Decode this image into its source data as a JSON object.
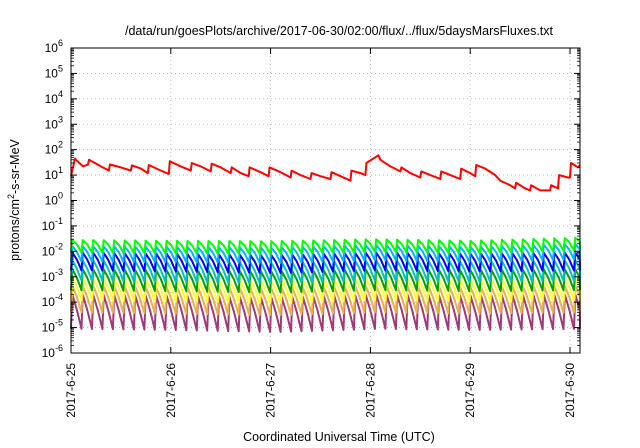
{
  "chart_data": {
    "type": "line",
    "title": "/data/run/goesPlots/archive/2017-06-30/02:00/flux/../flux/5daysMarsFluxes.txt",
    "xlabel": "Coordinated Universal Time (UTC)",
    "ylabel": "protons/cm²-s-sr-MeV",
    "ylabel_parts": {
      "before": "protons/cm",
      "sup": "2",
      "after": "-s-sr-MeV"
    },
    "yscale": "log",
    "ylim": [
      1e-06,
      1000000.0
    ],
    "xlim": [
      0,
      5.1
    ],
    "grid": true,
    "x_ticks": [
      {
        "value": 0,
        "label": "2017-6-25"
      },
      {
        "value": 1,
        "label": "2017-6-26"
      },
      {
        "value": 2,
        "label": "2017-6-27"
      },
      {
        "value": 3,
        "label": "2017-6-28"
      },
      {
        "value": 4,
        "label": "2017-6-29"
      },
      {
        "value": 5,
        "label": "2017-6-30"
      }
    ],
    "y_ticks": [
      {
        "value": 1e-06,
        "base": "10",
        "exp": "-6"
      },
      {
        "value": 1e-05,
        "base": "10",
        "exp": "-5"
      },
      {
        "value": 0.0001,
        "base": "10",
        "exp": "-4"
      },
      {
        "value": 0.001,
        "base": "10",
        "exp": "-3"
      },
      {
        "value": 0.01,
        "base": "10",
        "exp": "-2"
      },
      {
        "value": 0.1,
        "base": "10",
        "exp": "-1"
      },
      {
        "value": 1,
        "base": "10",
        "exp": "0"
      },
      {
        "value": 10,
        "base": "10",
        "exp": "1"
      },
      {
        "value": 100,
        "base": "10",
        "exp": "2"
      },
      {
        "value": 1000,
        "base": "10",
        "exp": "3"
      },
      {
        "value": 10000,
        "base": "10",
        "exp": "4"
      },
      {
        "value": 100000,
        "base": "10",
        "exp": "5"
      },
      {
        "value": 1000000,
        "base": "10",
        "exp": "6"
      }
    ],
    "series": [
      {
        "color": "#ff0000",
        "x": [
          0,
          0.04,
          0.05,
          0.12,
          0.17,
          0.18,
          0.3,
          0.38,
          0.39,
          0.5,
          0.6,
          0.61,
          0.7,
          0.77,
          0.78,
          0.9,
          0.98,
          0.99,
          1.1,
          1.2,
          1.21,
          1.3,
          1.4,
          1.41,
          1.5,
          1.6,
          1.61,
          1.7,
          1.78,
          1.79,
          1.9,
          1.98,
          1.99,
          2.1,
          2.2,
          2.21,
          2.3,
          2.4,
          2.41,
          2.5,
          2.6,
          2.61,
          2.7,
          2.8,
          2.81,
          2.9,
          2.95,
          2.96,
          3.03,
          3.08,
          3.1,
          3.2,
          3.3,
          3.31,
          3.4,
          3.5,
          3.51,
          3.6,
          3.7,
          3.71,
          3.8,
          3.9,
          3.91,
          4.0,
          4.05,
          4.06,
          4.15,
          4.25,
          4.3,
          4.4,
          4.45,
          4.46,
          4.55,
          4.6,
          4.61,
          4.7,
          4.8,
          4.81,
          4.88,
          4.89,
          4.98,
          5.0,
          5.01,
          5.08,
          5.1
        ],
        "y": [
          9,
          45,
          40,
          22,
          26,
          40,
          22,
          15,
          26,
          20,
          15,
          24,
          18,
          12,
          25,
          15,
          11,
          35,
          22,
          15,
          30,
          22,
          14,
          28,
          20,
          12,
          20,
          12,
          9,
          20,
          13,
          9,
          20,
          13,
          8,
          15,
          10,
          7,
          12,
          9,
          7,
          13,
          9,
          6,
          15,
          12,
          10,
          30,
          45,
          60,
          40,
          22,
          14,
          20,
          12,
          8,
          14,
          10,
          7,
          14,
          10,
          7,
          18,
          12,
          9,
          25,
          18,
          10,
          6,
          4,
          3,
          5,
          3,
          2.5,
          4,
          2.5,
          2.5,
          4,
          3,
          10,
          8,
          8,
          30,
          20,
          25
        ]
      },
      {
        "color": "#00ff00",
        "period": 0.105,
        "peak": 0.028,
        "trough": 0.009,
        "x": [
          0,
          1.0,
          2.0,
          3.0,
          4.0,
          5.1
        ],
        "y": [
          0.028,
          0.026,
          0.025,
          0.03,
          0.026,
          0.035
        ]
      },
      {
        "color": "#00b3ff",
        "period": 0.105,
        "peak": 0.016,
        "trough": 0.004,
        "x": [
          0,
          1.0,
          2.0,
          3.0,
          4.0,
          5.1
        ],
        "y": [
          0.016,
          0.015,
          0.014,
          0.018,
          0.015,
          0.02
        ]
      },
      {
        "color": "#0000ff",
        "period": 0.105,
        "peak": 0.009,
        "trough": 0.0018,
        "x": [
          0,
          1.0,
          2.0,
          3.0,
          4.0,
          5.1
        ],
        "y": [
          0.009,
          0.008,
          0.007,
          0.009,
          0.008,
          0.009
        ]
      },
      {
        "color": "#00c0c0",
        "period": 0.105,
        "peak": 0.0045,
        "trough": 0.0007,
        "x": [
          0,
          1.0,
          2.0,
          3.0,
          4.0,
          5.1
        ],
        "y": [
          0.0045,
          0.004,
          0.0035,
          0.0045,
          0.004,
          0.0045
        ]
      },
      {
        "color": "#00a000",
        "period": 0.105,
        "peak": 0.002,
        "trough": 0.0003,
        "x": [
          0,
          1.0,
          2.0,
          3.0,
          4.0,
          5.1
        ],
        "y": [
          0.002,
          0.0018,
          0.0016,
          0.002,
          0.0018,
          0.002
        ]
      },
      {
        "color": "#ffff33",
        "period": 0.105,
        "peak": 0.0009,
        "trough": 0.00012,
        "x": [
          0,
          1.0,
          2.0,
          3.0,
          4.0,
          5.1
        ],
        "y": [
          0.0009,
          0.0008,
          0.0007,
          0.0009,
          0.0008,
          0.0009
        ]
      },
      {
        "color": "#e8b04a",
        "period": 0.105,
        "peak": 0.00045,
        "trough": 4e-05,
        "x": [
          0,
          1.0,
          2.0,
          3.0,
          4.0,
          5.1
        ],
        "y": [
          0.00045,
          0.0004,
          0.00035,
          0.00045,
          0.0004,
          0.00045
        ]
      },
      {
        "color": "#9e3a76",
        "period": 0.105,
        "peak": 0.0002,
        "trough": 9e-06,
        "x": [
          0,
          1.0,
          2.0,
          3.0,
          4.0,
          5.1
        ],
        "y": [
          0.0002,
          0.00018,
          0.00015,
          0.0002,
          0.00018,
          0.0002
        ]
      }
    ]
  }
}
